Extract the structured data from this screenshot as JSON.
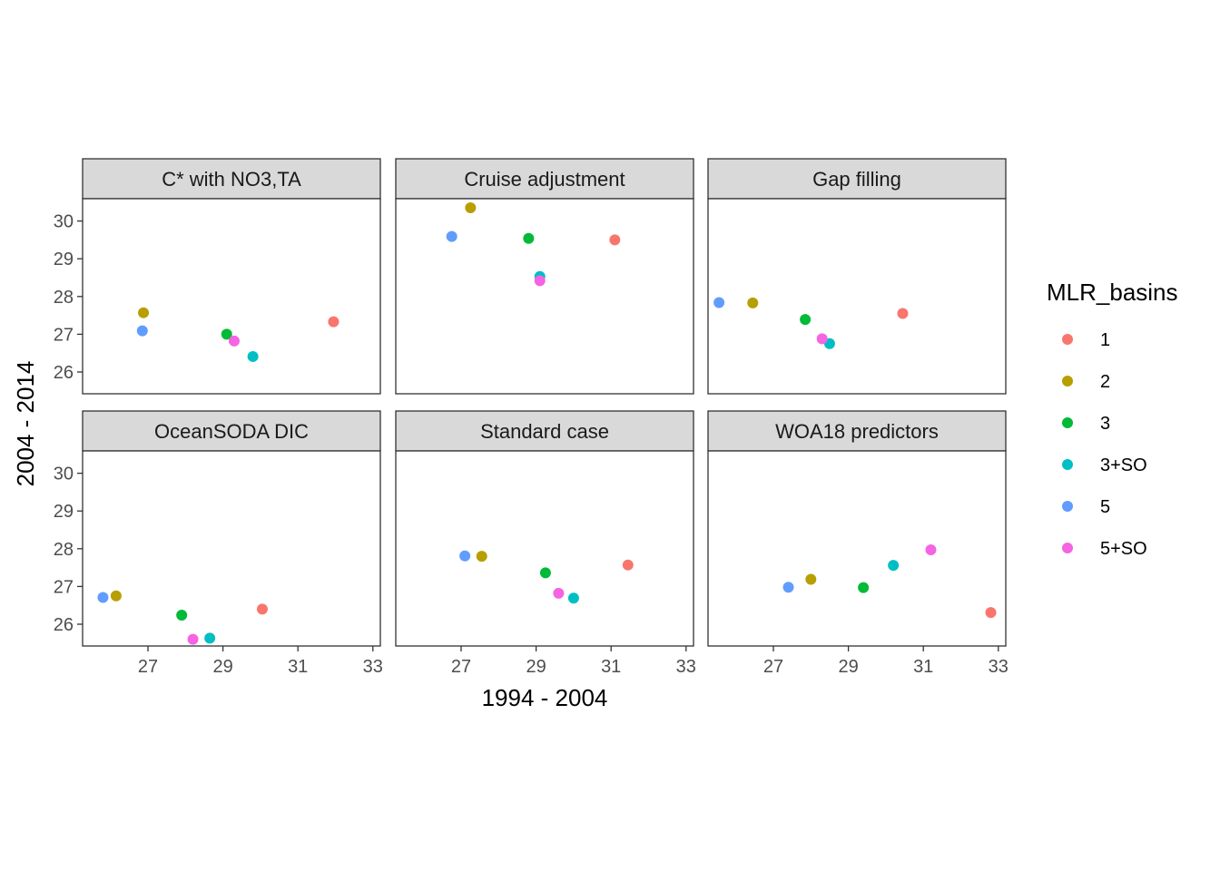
{
  "chart_data": {
    "type": "scatter",
    "xlabel": "1994 - 2004",
    "ylabel": "2004 - 2014",
    "xlim": [
      25.2,
      33.1
    ],
    "ylim": [
      25.4,
      30.6
    ],
    "x_ticks": [
      "27",
      "29",
      "31",
      "33"
    ],
    "y_ticks": [
      "26",
      "27",
      "28",
      "29",
      "30"
    ],
    "grid": false,
    "legend": {
      "title": "MLR_basins",
      "position": "right",
      "items": [
        {
          "label": "1",
          "color": "#F8766D"
        },
        {
          "label": "2",
          "color": "#B79F00"
        },
        {
          "label": "3",
          "color": "#00BA38"
        },
        {
          "label": "3+SO",
          "color": "#00BFC4"
        },
        {
          "label": "5",
          "color": "#619CFF"
        },
        {
          "label": "5+SO",
          "color": "#F564E3"
        }
      ]
    },
    "panels": [
      {
        "title": "C* with NO3,TA",
        "points": [
          {
            "basin": "1",
            "x": 31.95,
            "y": 27.33
          },
          {
            "basin": "2",
            "x": 26.88,
            "y": 27.57
          },
          {
            "basin": "3",
            "x": 29.1,
            "y": 27.0
          },
          {
            "basin": "3+SO",
            "x": 29.8,
            "y": 26.41
          },
          {
            "basin": "5",
            "x": 26.85,
            "y": 27.09
          },
          {
            "basin": "5+SO",
            "x": 29.3,
            "y": 26.82
          }
        ]
      },
      {
        "title": "Cruise adjustment",
        "points": [
          {
            "basin": "1",
            "x": 31.1,
            "y": 29.5
          },
          {
            "basin": "2",
            "x": 27.25,
            "y": 30.35
          },
          {
            "basin": "3",
            "x": 28.8,
            "y": 29.54
          },
          {
            "basin": "3+SO",
            "x": 29.1,
            "y": 28.53
          },
          {
            "basin": "5",
            "x": 26.75,
            "y": 29.59
          },
          {
            "basin": "5+SO",
            "x": 29.1,
            "y": 28.42
          }
        ]
      },
      {
        "title": "Gap filling",
        "points": [
          {
            "basin": "1",
            "x": 30.45,
            "y": 27.55
          },
          {
            "basin": "2",
            "x": 26.45,
            "y": 27.83
          },
          {
            "basin": "3",
            "x": 27.85,
            "y": 27.39
          },
          {
            "basin": "3+SO",
            "x": 28.5,
            "y": 26.75
          },
          {
            "basin": "5",
            "x": 25.55,
            "y": 27.84
          },
          {
            "basin": "5+SO",
            "x": 28.3,
            "y": 26.88
          }
        ]
      },
      {
        "title": "OceanSODA DIC",
        "points": [
          {
            "basin": "1",
            "x": 30.05,
            "y": 26.4
          },
          {
            "basin": "2",
            "x": 26.15,
            "y": 26.75
          },
          {
            "basin": "3",
            "x": 27.9,
            "y": 26.24
          },
          {
            "basin": "3+SO",
            "x": 28.65,
            "y": 25.63
          },
          {
            "basin": "5",
            "x": 25.8,
            "y": 26.71
          },
          {
            "basin": "5+SO",
            "x": 28.2,
            "y": 25.6
          }
        ]
      },
      {
        "title": "Standard case",
        "points": [
          {
            "basin": "1",
            "x": 31.45,
            "y": 27.57
          },
          {
            "basin": "2",
            "x": 27.55,
            "y": 27.8
          },
          {
            "basin": "3",
            "x": 29.25,
            "y": 27.36
          },
          {
            "basin": "3+SO",
            "x": 30.0,
            "y": 26.69
          },
          {
            "basin": "5",
            "x": 27.1,
            "y": 27.81
          },
          {
            "basin": "5+SO",
            "x": 29.6,
            "y": 26.82
          }
        ]
      },
      {
        "title": "WOA18 predictors",
        "points": [
          {
            "basin": "1",
            "x": 32.8,
            "y": 26.31
          },
          {
            "basin": "2",
            "x": 28.0,
            "y": 27.19
          },
          {
            "basin": "3",
            "x": 29.4,
            "y": 26.97
          },
          {
            "basin": "3+SO",
            "x": 30.2,
            "y": 27.56
          },
          {
            "basin": "5",
            "x": 27.4,
            "y": 26.98
          },
          {
            "basin": "5+SO",
            "x": 31.2,
            "y": 27.97
          }
        ]
      }
    ]
  }
}
